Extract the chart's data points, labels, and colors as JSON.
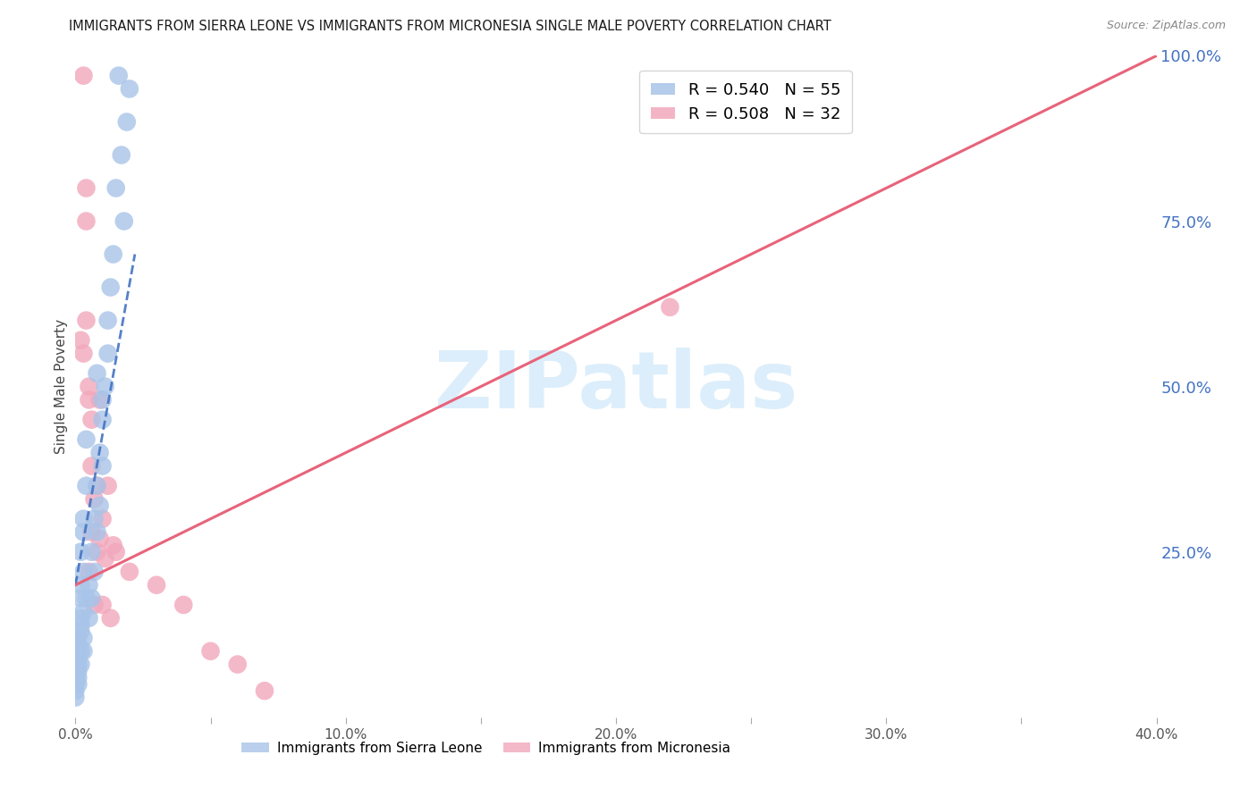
{
  "title": "IMMIGRANTS FROM SIERRA LEONE VS IMMIGRANTS FROM MICRONESIA SINGLE MALE POVERTY CORRELATION CHART",
  "source": "Source: ZipAtlas.com",
  "ylabel": "Single Male Poverty",
  "xlim": [
    0,
    0.4
  ],
  "ylim": [
    0,
    1.0
  ],
  "xtick_labels": [
    "0.0%",
    "",
    "10.0%",
    "",
    "20.0%",
    "",
    "30.0%",
    "",
    "40.0%"
  ],
  "xtick_values": [
    0.0,
    0.05,
    0.1,
    0.15,
    0.2,
    0.25,
    0.3,
    0.35,
    0.4
  ],
  "ytick_labels": [
    "25.0%",
    "50.0%",
    "75.0%",
    "100.0%"
  ],
  "ytick_values": [
    0.25,
    0.5,
    0.75,
    1.0
  ],
  "series1_color": "#a8c4e8",
  "series2_color": "#f2a8bc",
  "trendline1_color": "#4472c4",
  "trendline2_color": "#e8637a",
  "watermark_text": "ZIPatlas",
  "watermark_color": "#dceefb",
  "background_color": "#ffffff",
  "grid_color": "#d0d0d0",
  "sierra_leone_x": [
    0.0,
    0.0,
    0.0,
    0.0,
    0.0,
    0.001,
    0.001,
    0.001,
    0.001,
    0.001,
    0.001,
    0.001,
    0.001,
    0.002,
    0.002,
    0.002,
    0.002,
    0.002,
    0.002,
    0.002,
    0.002,
    0.003,
    0.003,
    0.003,
    0.003,
    0.003,
    0.003,
    0.004,
    0.004,
    0.004,
    0.005,
    0.005,
    0.006,
    0.006,
    0.007,
    0.007,
    0.008,
    0.008,
    0.009,
    0.009,
    0.01,
    0.01,
    0.011,
    0.012,
    0.012,
    0.013,
    0.014,
    0.015,
    0.016,
    0.017,
    0.018,
    0.019,
    0.02,
    0.01,
    0.008
  ],
  "sierra_leone_y": [
    0.05,
    0.04,
    0.06,
    0.07,
    0.03,
    0.08,
    0.09,
    0.1,
    0.07,
    0.06,
    0.12,
    0.05,
    0.11,
    0.14,
    0.13,
    0.15,
    0.1,
    0.2,
    0.08,
    0.18,
    0.25,
    0.16,
    0.22,
    0.3,
    0.12,
    0.28,
    0.1,
    0.35,
    0.18,
    0.42,
    0.2,
    0.15,
    0.25,
    0.18,
    0.3,
    0.22,
    0.35,
    0.28,
    0.4,
    0.32,
    0.38,
    0.45,
    0.5,
    0.55,
    0.6,
    0.65,
    0.7,
    0.8,
    0.97,
    0.85,
    0.75,
    0.9,
    0.95,
    0.48,
    0.52
  ],
  "micronesia_x": [
    0.002,
    0.003,
    0.003,
    0.004,
    0.004,
    0.004,
    0.005,
    0.005,
    0.005,
    0.006,
    0.006,
    0.006,
    0.007,
    0.007,
    0.008,
    0.008,
    0.009,
    0.009,
    0.01,
    0.01,
    0.011,
    0.012,
    0.013,
    0.014,
    0.015,
    0.02,
    0.03,
    0.04,
    0.05,
    0.06,
    0.07,
    0.22
  ],
  "micronesia_y": [
    0.57,
    0.55,
    0.97,
    0.6,
    0.75,
    0.8,
    0.48,
    0.5,
    0.22,
    0.45,
    0.38,
    0.28,
    0.33,
    0.17,
    0.25,
    0.35,
    0.27,
    0.48,
    0.3,
    0.17,
    0.24,
    0.35,
    0.15,
    0.26,
    0.25,
    0.22,
    0.2,
    0.17,
    0.1,
    0.08,
    0.04,
    0.62
  ],
  "sl_trendline_x": [
    0.0,
    0.022
  ],
  "sl_trendline_y": [
    0.2,
    0.7
  ],
  "mc_trendline_x": [
    0.0,
    0.4
  ],
  "mc_trendline_y": [
    0.2,
    1.0
  ]
}
